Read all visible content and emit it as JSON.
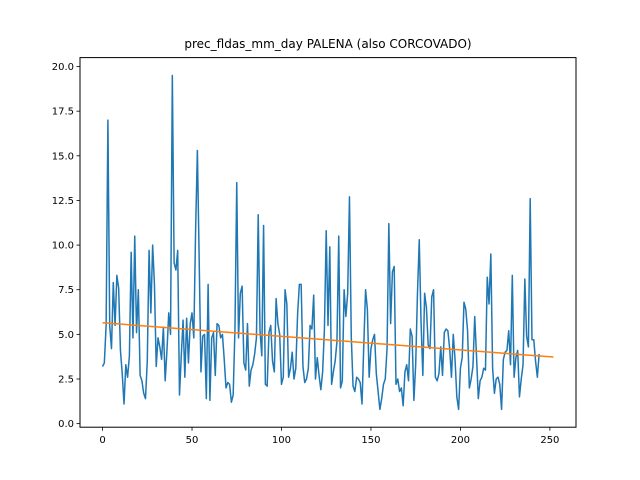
{
  "chart_data": {
    "type": "line",
    "title": "prec_fldas_mm_day PALENA (also CORCOVADO)",
    "xlabel": "",
    "ylabel": "",
    "xlim": [
      -12.6,
      264.6
    ],
    "ylim": [
      -0.2,
      20.5
    ],
    "x_ticks": [
      0,
      50,
      100,
      150,
      200,
      250
    ],
    "y_ticks": [
      0.0,
      2.5,
      5.0,
      7.5,
      10.0,
      12.5,
      15.0,
      17.5,
      20.0
    ],
    "y_tick_labels": [
      "0.0",
      "2.5",
      "5.0",
      "7.5",
      "10.0",
      "12.5",
      "15.0",
      "17.5",
      "20.0"
    ],
    "grid": false,
    "colors": {
      "series": "#1f77b4",
      "trend": "#ff7f0e"
    },
    "series": [
      {
        "values": [
          3.2,
          3.4,
          5.5,
          17.0,
          5.5,
          4.2,
          7.9,
          5.5,
          8.3,
          7.6,
          4.1,
          2.8,
          1.1,
          3.3,
          2.6,
          3.8,
          9.6,
          4.8,
          10.5,
          5.1,
          7.5,
          2.7,
          2.4,
          1.7,
          1.4,
          3.5,
          9.7,
          6.2,
          10.0,
          7.8,
          3.2,
          4.8,
          4.3,
          3.6,
          5.4,
          2.4,
          4.1,
          6.2,
          5.0,
          19.5,
          9.0,
          8.6,
          9.7,
          1.6,
          3.8,
          5.8,
          2.6,
          5.9,
          3.4,
          5.6,
          6.2,
          4.8,
          10.8,
          15.3,
          9.2,
          2.9,
          4.9,
          5.0,
          1.4,
          7.8,
          1.3,
          4.8,
          5.1,
          2.7,
          5.6,
          5.5,
          4.8,
          5.0,
          3.6,
          2.0,
          2.3,
          2.2,
          1.2,
          1.6,
          5.3,
          13.5,
          4.8,
          7.3,
          7.7,
          3.4,
          3.0,
          5.6,
          2.1,
          3.0,
          3.3,
          3.9,
          4.8,
          11.7,
          5.2,
          3.8,
          11.1,
          2.2,
          2.1,
          5.1,
          5.5,
          3.5,
          2.9,
          7.0,
          5.6,
          5.0,
          2.2,
          2.6,
          7.5,
          6.7,
          2.6,
          3.1,
          4.0,
          2.5,
          3.1,
          6.1,
          7.8,
          7.8,
          3.2,
          2.3,
          2.5,
          3.1,
          5.5,
          5.3,
          7.2,
          2.5,
          3.7,
          2.7,
          1.9,
          2.9,
          5.3,
          10.8,
          5.5,
          9.9,
          2.2,
          2.9,
          3.5,
          4.6,
          10.5,
          2.0,
          2.4,
          7.5,
          6.0,
          7.3,
          12.7,
          4.9,
          2.1,
          1.8,
          2.6,
          2.5,
          2.3,
          1.1,
          4.4,
          7.5,
          6.4,
          2.6,
          4.2,
          4.7,
          5.0,
          2.8,
          1.8,
          0.8,
          1.4,
          2.2,
          2.5,
          4.2,
          11.2,
          5.6,
          8.5,
          8.8,
          2.2,
          2.5,
          1.8,
          2.0,
          1.0,
          2.9,
          3.3,
          2.4,
          5.3,
          4.9,
          1.3,
          3.3,
          7.3,
          10.3,
          5.7,
          2.7,
          7.3,
          6.5,
          4.4,
          4.2,
          7.1,
          7.5,
          2.6,
          2.4,
          2.8,
          4.3,
          2.7,
          5.1,
          5.3,
          5.2,
          4.2,
          2.6,
          5.0,
          3.6,
          1.5,
          0.8,
          3.1,
          3.7,
          6.8,
          6.4,
          5.2,
          2.0,
          2.5,
          3.2,
          6.0,
          3.8,
          1.4,
          2.4,
          2.6,
          3.1,
          3.0,
          8.2,
          6.7,
          9.5,
          3.1,
          1.7,
          2.5,
          2.6,
          2.2,
          0.8,
          3.6,
          4.0,
          4.1,
          5.2,
          3.3,
          8.3,
          2.6,
          3.7,
          4.1,
          1.5,
          2.5,
          3.3,
          8.1,
          4.9,
          4.3,
          12.6,
          4.7,
          4.7,
          3.5,
          2.6,
          3.9
        ]
      },
      {
        "type": "line",
        "x": [
          0,
          252
        ],
        "values": [
          5.65,
          3.73
        ]
      }
    ]
  }
}
